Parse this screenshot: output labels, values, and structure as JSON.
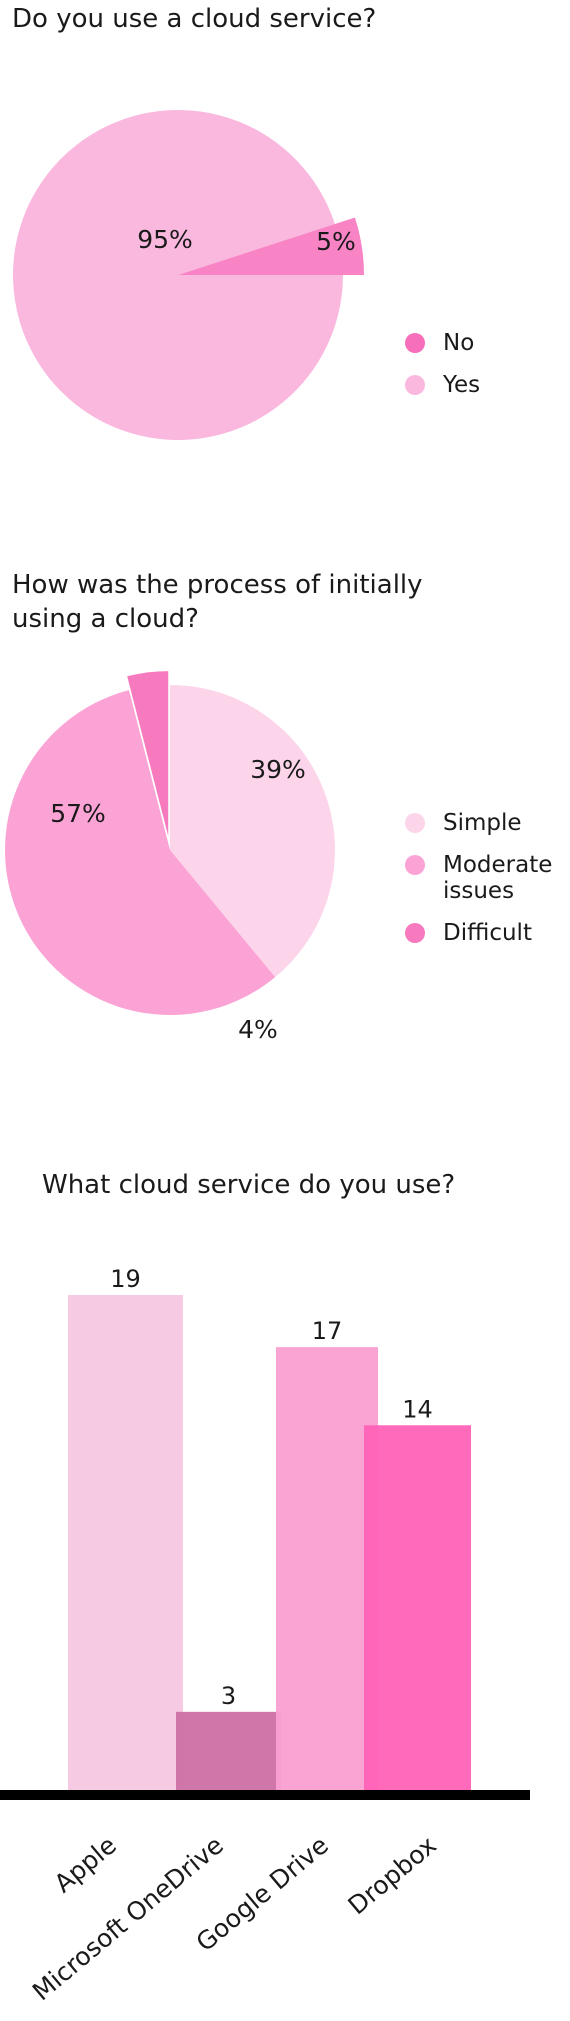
{
  "chart_data": [
    {
      "type": "pie",
      "title": "Do you use a cloud service?",
      "slices": [
        {
          "label": "No",
          "value": 5,
          "display": "5%",
          "color": "#f76fbb"
        },
        {
          "label": "Yes",
          "value": 95,
          "display": "95%",
          "color": "#fab8df"
        }
      ],
      "legend_position": "right"
    },
    {
      "type": "pie",
      "title": "How was the process of initially using a cloud?",
      "slices": [
        {
          "label": "Simple",
          "value": 39,
          "display": "39%",
          "color": "#fdd5eb"
        },
        {
          "label": "Moderate issues",
          "value": 57,
          "display": "57%",
          "color": "#fba3d5"
        },
        {
          "label": "Difficult",
          "value": 4,
          "display": "4%",
          "color": "#f779be"
        }
      ],
      "legend_position": "right"
    },
    {
      "type": "bar",
      "title": "What cloud service do you use?",
      "categories": [
        "Apple",
        "Microsoft OneDrive",
        "Google Drive",
        "Dropbox"
      ],
      "values": [
        19,
        3,
        17,
        14
      ],
      "value_labels": [
        "19",
        "3",
        "17",
        "14"
      ],
      "colors": [
        "#f7c7e3",
        "#cc70a3",
        "#fa9fd2",
        "#ff62b6"
      ],
      "ylim": [
        0,
        19
      ],
      "grid": false
    }
  ]
}
